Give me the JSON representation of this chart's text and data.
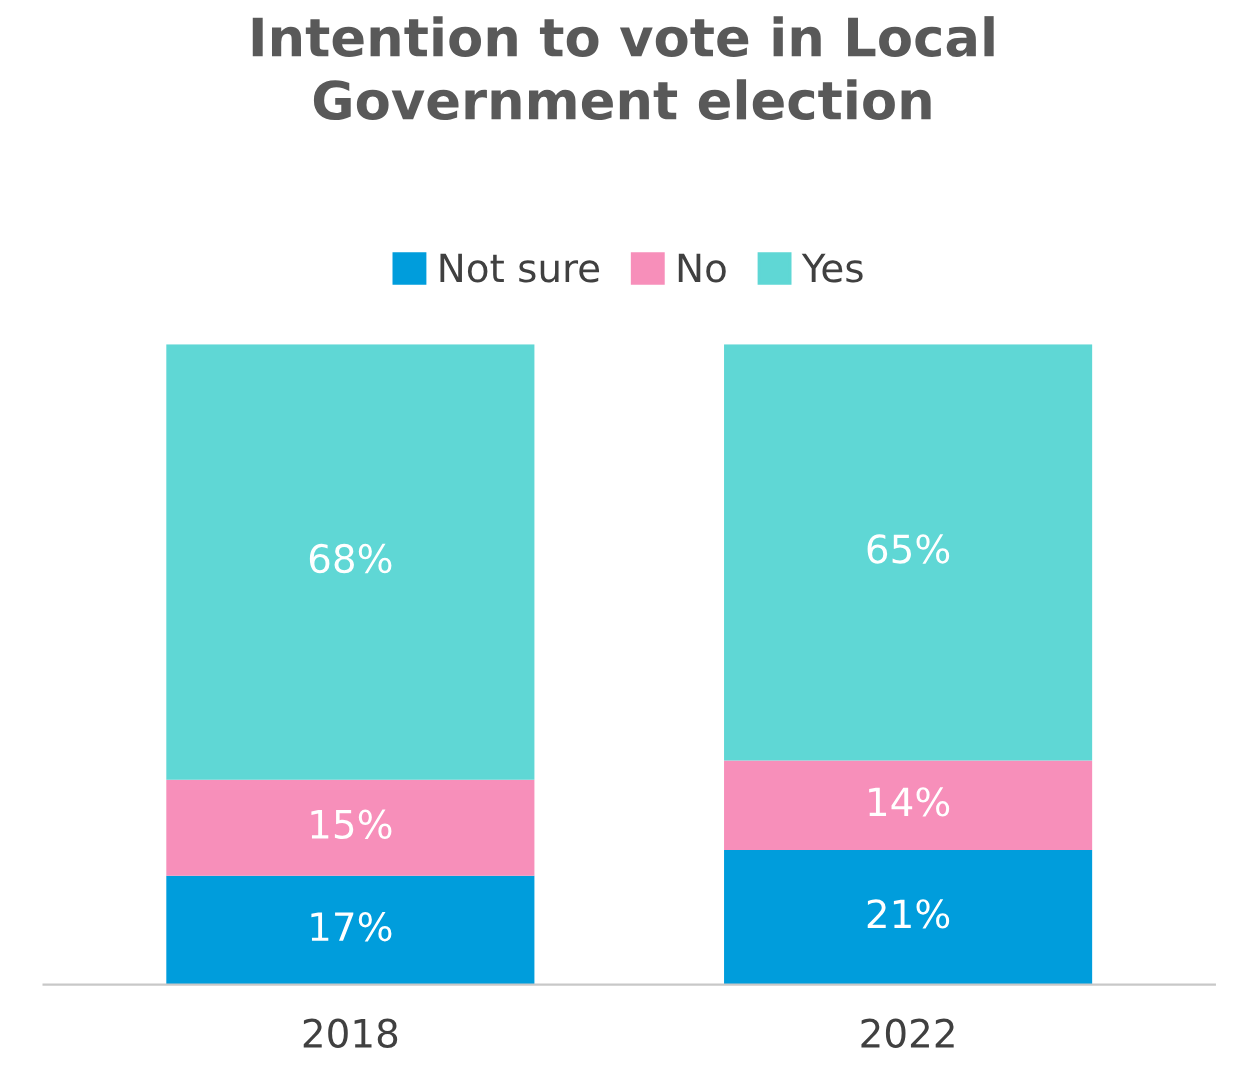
{
  "chart_data": {
    "type": "bar",
    "title": "Intention to vote in Local\nGovernment election",
    "categories": [
      "2018",
      "2022"
    ],
    "stacked": true,
    "legend": "top",
    "series": [
      {
        "name": "Not sure",
        "color": "#009ddc",
        "values": [
          17,
          21
        ],
        "value_labels": [
          "17%",
          "21%"
        ]
      },
      {
        "name": "No",
        "color": "#f78fba",
        "values": [
          15,
          14
        ],
        "value_labels": [
          "15%",
          "14%"
        ]
      },
      {
        "name": "Yes",
        "color": "#5fd7d5",
        "values": [
          68,
          65
        ],
        "value_labels": [
          "68%",
          "65%"
        ]
      }
    ]
  }
}
